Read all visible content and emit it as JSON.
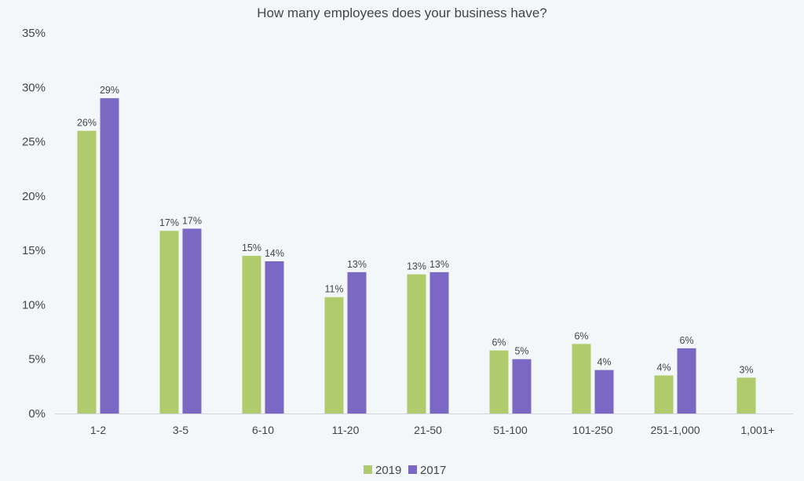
{
  "chart_data": {
    "type": "bar",
    "title": "How many employees does your business have?",
    "xlabel": "",
    "ylabel": "",
    "ylim": [
      0,
      35
    ],
    "yticks": [
      "0%",
      "5%",
      "10%",
      "15%",
      "20%",
      "25%",
      "30%",
      "35%"
    ],
    "grid": false,
    "legend_position": "bottom",
    "categories": [
      "1-2",
      "3-5",
      "6-10",
      "11-20",
      "21-50",
      "51-100",
      "101-250",
      "251-1,000",
      "1,001+"
    ],
    "series": [
      {
        "name": "2019",
        "color": "#afcb6b",
        "values": [
          26.0,
          16.8,
          14.5,
          10.7,
          12.8,
          5.8,
          6.4,
          3.5,
          3.3
        ],
        "labels": [
          "26%",
          "17%",
          "15%",
          "11%",
          "13%",
          "6%",
          "6%",
          "4%",
          "3%"
        ]
      },
      {
        "name": "2017",
        "color": "#7b68c4",
        "values": [
          29.0,
          17.0,
          14.0,
          13.0,
          13.0,
          5.0,
          4.0,
          6.0,
          null
        ],
        "labels": [
          "29%",
          "17%",
          "14%",
          "13%",
          "13%",
          "5%",
          "4%",
          "6%",
          null
        ]
      }
    ]
  }
}
